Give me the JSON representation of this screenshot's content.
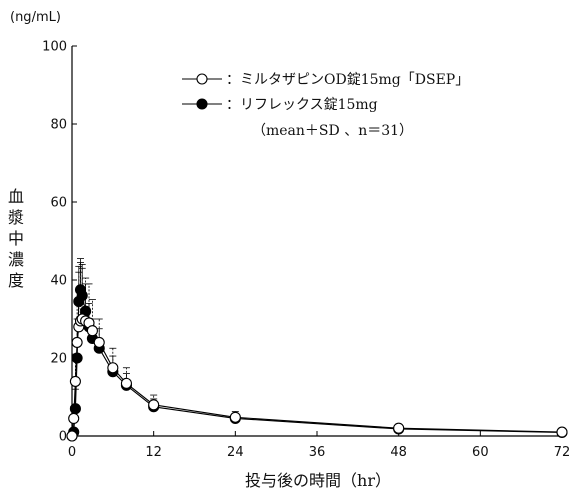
{
  "chart_data": {
    "type": "line",
    "unit_label": "(ng/mL)",
    "xlabel": "投与後の時間（hr）",
    "ylabel": "血漿中濃度",
    "xlim": [
      0,
      72
    ],
    "ylim": [
      0,
      100
    ],
    "x_ticks": [
      0,
      12,
      24,
      36,
      48,
      60,
      72
    ],
    "y_ticks": [
      0,
      20,
      40,
      60,
      80,
      100
    ],
    "x_tick_labels": [
      "0",
      "12",
      "24",
      "36",
      "48",
      "60",
      "72"
    ],
    "y_tick_labels": [
      "0",
      "20",
      "40",
      "60",
      "80",
      "100"
    ],
    "legend": {
      "placement": "top-right",
      "entries": [
        {
          "text": "：ミルタザピンOD錠15mg「DSEP」",
          "series": 0
        },
        {
          "text": "：リフレックス錠15mg",
          "series": 1
        }
      ],
      "note": "（mean＋SD 、n＝31）"
    },
    "series": [
      {
        "marker": "open-circle",
        "x": [
          0,
          0.25,
          0.5,
          0.75,
          1,
          1.25,
          1.5,
          2,
          2.5,
          3,
          4,
          6,
          8,
          12,
          24,
          48,
          72
        ],
        "y": [
          0,
          4.5,
          14,
          24,
          28,
          29.5,
          30,
          29.5,
          29,
          27,
          24,
          17.5,
          13.5,
          8,
          4.8,
          2.0,
          1.0
        ],
        "sd": [
          0,
          3,
          7,
          11,
          14,
          15,
          13,
          11,
          10,
          8,
          6,
          5,
          4,
          2.5,
          1.5,
          1.0,
          0.5
        ]
      },
      {
        "marker": "filled-circle",
        "x": [
          0,
          0.25,
          0.5,
          0.75,
          1,
          1.25,
          1.5,
          2,
          2.5,
          3,
          4,
          6,
          8,
          12,
          24,
          48,
          72
        ],
        "y": [
          0,
          1,
          7,
          20,
          34.5,
          37.5,
          36,
          32,
          28,
          25,
          22.5,
          16.5,
          13,
          7.5,
          4.5,
          1.8,
          0.9
        ],
        "sd": [
          0,
          1,
          5,
          10,
          9,
          8,
          8,
          7,
          6,
          5,
          5,
          4,
          3,
          2,
          1.3,
          0.8,
          0.4
        ]
      }
    ]
  }
}
